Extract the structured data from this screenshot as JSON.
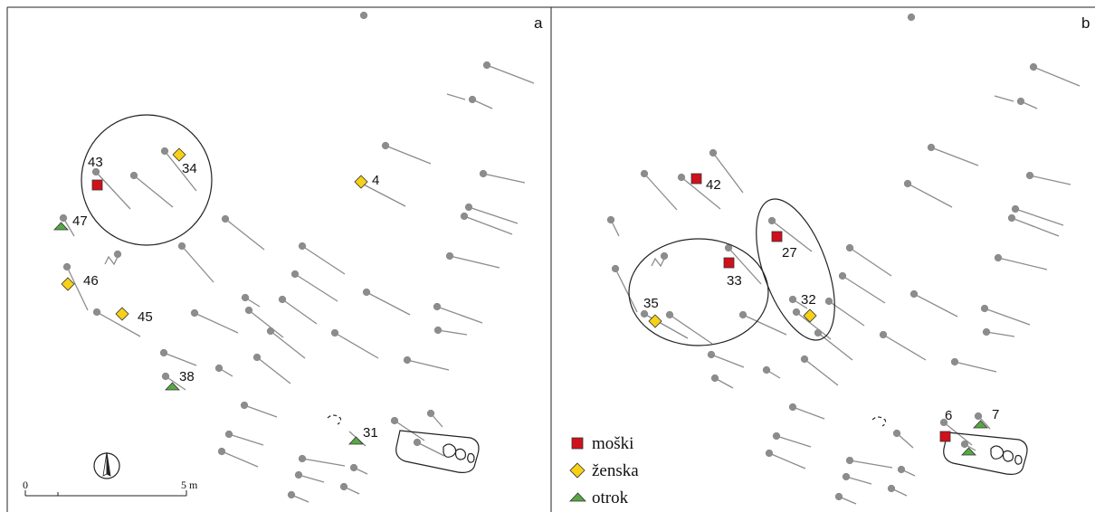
{
  "panels": [
    {
      "id": "a",
      "label": "a",
      "markers": [
        {
          "type": "moski",
          "label": "43"
        },
        {
          "type": "zenska",
          "label": "34"
        },
        {
          "type": "zenska",
          "label": "4"
        },
        {
          "type": "otrok",
          "label": "47"
        },
        {
          "type": "zenska",
          "label": "46"
        },
        {
          "type": "zenska",
          "label": "45"
        },
        {
          "type": "otrok",
          "label": "38"
        },
        {
          "type": "otrok",
          "label": "31"
        }
      ]
    },
    {
      "id": "b",
      "label": "b",
      "markers": [
        {
          "type": "moski",
          "label": "42"
        },
        {
          "type": "moski",
          "label": "27"
        },
        {
          "type": "moski",
          "label": "33"
        },
        {
          "type": "zenska",
          "label": "35"
        },
        {
          "type": "zenska",
          "label": "32"
        },
        {
          "type": "moski",
          "label": "6"
        },
        {
          "type": "otrok",
          "label": "7"
        },
        {
          "type": "otrok",
          "label": ""
        }
      ]
    }
  ],
  "legend": [
    {
      "type": "moski",
      "label": "moški"
    },
    {
      "type": "zenska",
      "label": "ženska"
    },
    {
      "type": "otrok",
      "label": "otrok"
    }
  ],
  "scale": {
    "start": "0",
    "end": "5 m"
  },
  "north_arrow_icon": "north-arrow-icon",
  "colors": {
    "moski": "#d0101b",
    "zenska": "#f7d117",
    "otrok": "#57a845",
    "grave": "#8c8c8c",
    "line": "#8c8c8c"
  }
}
